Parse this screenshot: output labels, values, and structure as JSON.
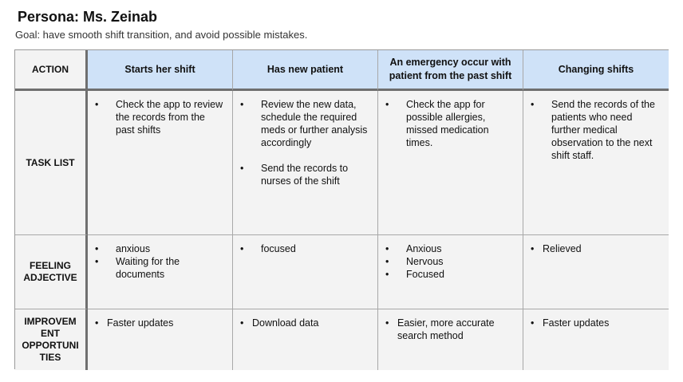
{
  "title": "Persona: Ms. Zeinab",
  "goal": "Goal: have smooth shift transition, and avoid possible mistakes.",
  "header": {
    "action_label": "ACTION",
    "columns": [
      "Starts her shift",
      "Has new patient",
      "An emergency occur with patient from the past shift",
      "Changing shifts"
    ]
  },
  "rows": {
    "task_list_label": "TASK LIST",
    "feeling_label": "FEELING ADJECTIVE",
    "improvement_label": "IMPROVEM ENT OPPORTUNI TIES"
  },
  "tasks": [
    [
      "Check the app to review the records from the past shifts"
    ],
    [
      "Review the new data, schedule the required meds or further analysis accordingly",
      "Send the records to nurses of the shift"
    ],
    [
      "Check the app for possible allergies, missed medication times."
    ],
    [
      "Send the records of the patients who need further medical observation to the next shift staff."
    ]
  ],
  "feelings": [
    [
      "anxious",
      "Waiting for the documents"
    ],
    [
      "focused"
    ],
    [
      "Anxious",
      "Nervous",
      "Focused"
    ],
    [
      "Relieved"
    ]
  ],
  "improvements": [
    [
      "Faster updates"
    ],
    [
      "Download data"
    ],
    [
      "Easier, more accurate search method"
    ],
    [
      "Faster updates"
    ]
  ],
  "colors": {
    "header_blue": "#cfe2f8",
    "cell_gray": "#f3f3f3",
    "divider": "#6f6f6f"
  }
}
